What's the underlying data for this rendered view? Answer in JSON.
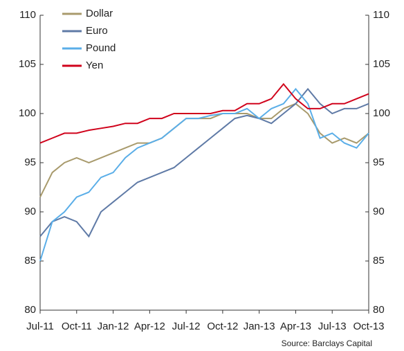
{
  "chart_data": {
    "type": "line",
    "x": [
      "2011-07",
      "2011-08",
      "2011-09",
      "2011-10",
      "2011-11",
      "2011-12",
      "2012-01",
      "2012-02",
      "2012-03",
      "2012-04",
      "2012-05",
      "2012-06",
      "2012-07",
      "2012-08",
      "2012-09",
      "2012-10",
      "2012-11",
      "2012-12",
      "2013-01",
      "2013-02",
      "2013-03",
      "2013-04",
      "2013-05",
      "2013-06",
      "2013-07",
      "2013-08",
      "2013-09",
      "2013-10"
    ],
    "xlim": [
      "2011-07",
      "2013-10"
    ],
    "xticks": [
      {
        "value": "2011-07",
        "label": "Jul-11"
      },
      {
        "value": "2011-10",
        "label": "Oct-11"
      },
      {
        "value": "2012-01",
        "label": "Jan-12"
      },
      {
        "value": "2012-04",
        "label": "Apr-12"
      },
      {
        "value": "2012-07",
        "label": "Jul-12"
      },
      {
        "value": "2012-10",
        "label": "Oct-12"
      },
      {
        "value": "2013-01",
        "label": "Jan-13"
      },
      {
        "value": "2013-04",
        "label": "Apr-13"
      },
      {
        "value": "2013-07",
        "label": "Jul-13"
      },
      {
        "value": "2013-10",
        "label": "Oct-13"
      }
    ],
    "ylim": [
      80,
      110
    ],
    "yticks": [
      80,
      85,
      90,
      95,
      100,
      105,
      110
    ],
    "y2lim": [
      80,
      110
    ],
    "y2ticks": [
      80,
      85,
      90,
      95,
      100,
      105,
      110
    ],
    "series": [
      {
        "name": "Dollar",
        "color": "#a89a6c",
        "values": [
          91.5,
          94,
          95,
          95.5,
          95,
          95.5,
          96,
          96.5,
          97,
          97,
          97.5,
          98.5,
          99.5,
          99.5,
          99.5,
          100,
          100,
          100,
          99.5,
          99.5,
          100.5,
          101,
          100,
          98,
          97,
          97.5,
          97,
          98
        ]
      },
      {
        "name": "Euro",
        "color": "#5f7aa6",
        "values": [
          87.5,
          89,
          89.5,
          89,
          87.5,
          90,
          91,
          92,
          93,
          93.5,
          94,
          94.5,
          95.5,
          96.5,
          97.5,
          98.5,
          99.5,
          99.8,
          99.5,
          99,
          100,
          101,
          102.5,
          101,
          100,
          100.5,
          100.5,
          101
        ]
      },
      {
        "name": "Pound",
        "color": "#5aaee8",
        "values": [
          85,
          89,
          90,
          91.5,
          92,
          93.5,
          94,
          95.5,
          96.5,
          97,
          97.5,
          98.5,
          99.5,
          99.5,
          99.8,
          100,
          100,
          100.5,
          99.5,
          100.5,
          101,
          102.5,
          101,
          97.5,
          98,
          97,
          96.5,
          98
        ]
      },
      {
        "name": "Yen",
        "color": "#d0021b",
        "values": [
          97,
          97.5,
          98,
          98,
          98.3,
          98.5,
          98.7,
          99,
          99,
          99.5,
          99.5,
          100,
          100,
          100,
          100,
          100.3,
          100.3,
          101,
          101,
          101.5,
          103,
          101.5,
          100.5,
          100.5,
          101,
          101,
          101.5,
          102
        ]
      }
    ],
    "source": "Source: Barclays Capital"
  }
}
